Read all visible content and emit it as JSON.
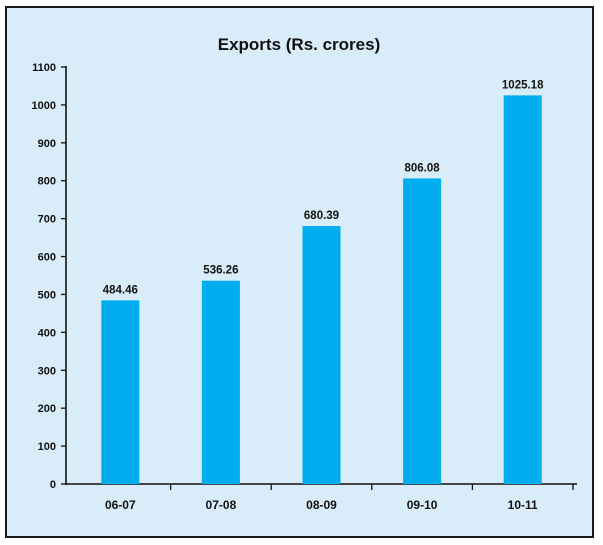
{
  "chart_data": {
    "type": "bar",
    "title": "Exports (Rs. crores)",
    "xlabel": "",
    "ylabel": "",
    "categories": [
      "06-07",
      "07-08",
      "08-09",
      "09-10",
      "10-11"
    ],
    "values": [
      484.46,
      536.26,
      680.39,
      806.08,
      1025.18
    ],
    "value_labels": [
      "484.46",
      "536.26",
      "680.39",
      "806.08",
      "1025.18"
    ],
    "ylim": [
      0,
      1100
    ],
    "yticks": [
      0,
      100,
      200,
      300,
      400,
      500,
      600,
      700,
      800,
      900,
      1000,
      1100
    ],
    "grid": false,
    "legend": "none",
    "bar_color": "#00aeef",
    "background_color": "#d8edf9"
  }
}
